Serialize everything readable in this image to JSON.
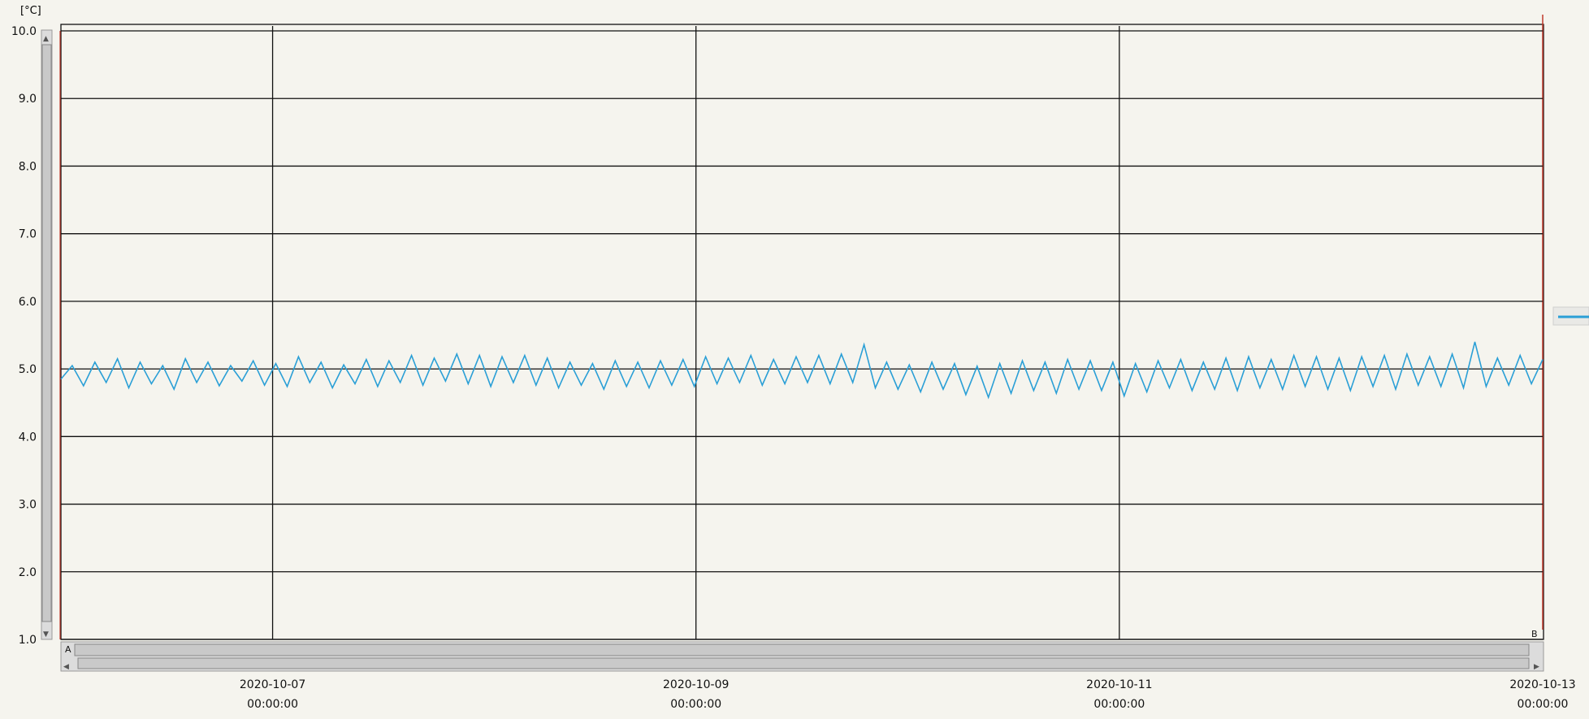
{
  "colors": {
    "series": "#2a9fd6",
    "grid": "#111111",
    "border_right": "#c0392b",
    "background": "#f5f4ee"
  },
  "chart_data": {
    "type": "line",
    "title": "",
    "xlabel": "",
    "ylabel": "[°C]",
    "ylim": [
      1.0,
      10.0
    ],
    "y_ticks": [
      "10.0",
      "9.0",
      "8.0",
      "7.0",
      "6.0",
      "5.0",
      "4.0",
      "3.0",
      "2.0",
      "1.0"
    ],
    "xlim": [
      "2020-10-06 00:00:00",
      "2020-10-13 00:00:00"
    ],
    "x_ticks": [
      {
        "date": "2020-10-07",
        "time": "00:00:00"
      },
      {
        "date": "2020-10-09",
        "time": "00:00:00"
      },
      {
        "date": "2020-10-11",
        "time": "00:00:00"
      },
      {
        "date": "2020-10-13",
        "time": "00:00:00"
      }
    ],
    "grid": true,
    "legend": "right",
    "series": [
      {
        "x_start": "2020-10-06 00:00:00",
        "x_end": "2020-10-13 00:00:00",
        "values": [
          4.85,
          5.05,
          4.75,
          5.1,
          4.8,
          5.15,
          4.72,
          5.1,
          4.78,
          5.05,
          4.7,
          5.15,
          4.8,
          5.1,
          4.75,
          5.05,
          4.82,
          5.12,
          4.76,
          5.08,
          4.74,
          5.18,
          4.8,
          5.1,
          4.72,
          5.06,
          4.78,
          5.14,
          4.74,
          5.12,
          4.8,
          5.2,
          4.76,
          5.16,
          4.82,
          5.22,
          4.78,
          5.2,
          4.74,
          5.18,
          4.8,
          5.2,
          4.76,
          5.16,
          4.72,
          5.1,
          4.76,
          5.08,
          4.7,
          5.12,
          4.74,
          5.1,
          4.72,
          5.12,
          4.76,
          5.14,
          4.74,
          5.18,
          4.78,
          5.16,
          4.8,
          5.2,
          4.76,
          5.14,
          4.78,
          5.18,
          4.8,
          5.2,
          4.78,
          5.22,
          4.8,
          5.36,
          4.72,
          5.1,
          4.7,
          5.06,
          4.66,
          5.1,
          4.7,
          5.08,
          4.62,
          5.04,
          4.58,
          5.08,
          4.64,
          5.12,
          4.68,
          5.1,
          4.64,
          5.14,
          4.7,
          5.12,
          4.68,
          5.1,
          4.6,
          5.08,
          4.66,
          5.12,
          4.72,
          5.14,
          4.68,
          5.1,
          4.7,
          5.16,
          4.68,
          5.18,
          4.72,
          5.14,
          4.7,
          5.2,
          4.74,
          5.18,
          4.7,
          5.16,
          4.68,
          5.18,
          4.74,
          5.2,
          4.7,
          5.22,
          4.76,
          5.18,
          4.74,
          5.22,
          4.72,
          5.4,
          4.74,
          5.16,
          4.76,
          5.2,
          4.78,
          5.14
        ]
      }
    ]
  },
  "scrollbar": {
    "left_marker": "A",
    "right_marker": "B"
  }
}
